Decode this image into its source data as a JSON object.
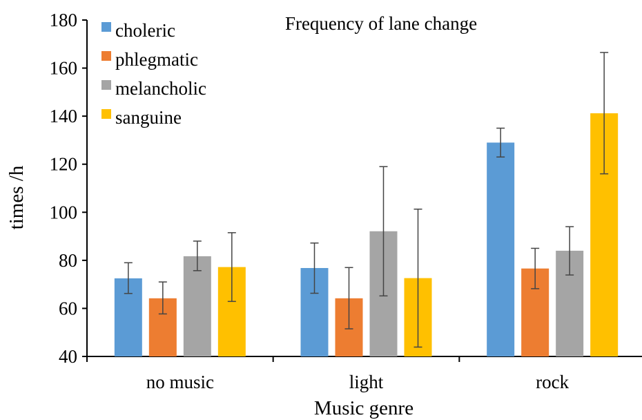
{
  "chart_data": {
    "type": "bar",
    "title": "Frequency of lane change",
    "xlabel": "Music genre",
    "ylabel": "times /h",
    "ylim": [
      40,
      180
    ],
    "yticks": [
      40,
      60,
      80,
      100,
      120,
      140,
      160,
      180
    ],
    "categories": [
      "no music",
      "light",
      "rock"
    ],
    "legend_position": "top-left",
    "grid": false,
    "series": [
      {
        "name": "choleric",
        "color": "#5B9BD5",
        "values": [
          72.5,
          76.8,
          129
        ],
        "error_low": [
          66.2,
          66.3,
          123
        ],
        "error_high": [
          79,
          87.2,
          135
        ]
      },
      {
        "name": "phlegmatic",
        "color": "#ED7D31",
        "values": [
          64.2,
          64.2,
          76.6
        ],
        "error_low": [
          57.7,
          51.5,
          68.2
        ],
        "error_high": [
          71,
          77,
          85
        ]
      },
      {
        "name": "melancholic",
        "color": "#A5A5A5",
        "values": [
          81.7,
          92.1,
          84
        ],
        "error_low": [
          75.7,
          65.2,
          73.9
        ],
        "error_high": [
          88,
          119,
          94
        ]
      },
      {
        "name": "sanguine",
        "color": "#FFC000",
        "values": [
          77.2,
          72.6,
          141.2
        ],
        "error_low": [
          62.9,
          43.9,
          116
        ],
        "error_high": [
          91.5,
          101.3,
          166.5
        ]
      }
    ]
  }
}
